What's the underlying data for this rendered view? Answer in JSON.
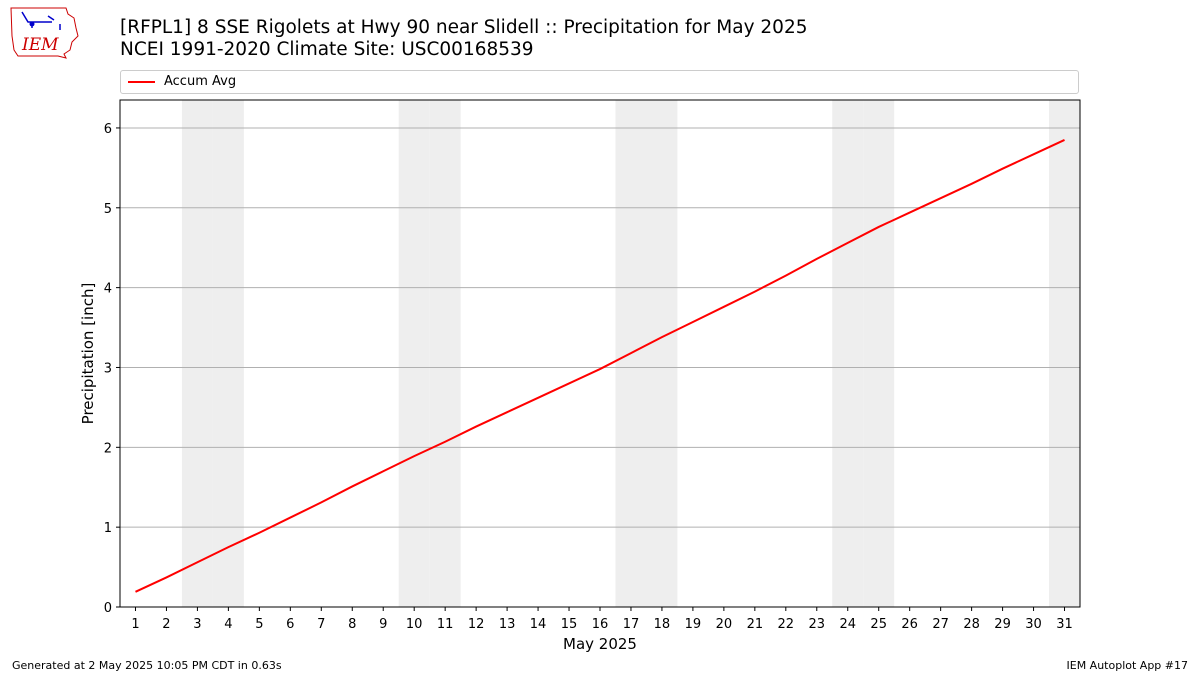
{
  "header": {
    "logo_text": "IEM",
    "title_line1": "[RFPL1] 8 SSE Rigolets at Hwy 90 near Slidell :: Precipitation for May 2025",
    "title_line2": "NCEI 1991-2020 Climate Site: USC00168539"
  },
  "colors": {
    "line": "#ff0000",
    "weekend_band": "#eeeeee",
    "grid": "#b0b0b0",
    "logo": "#cc0000",
    "logo_accent": "#0000cc"
  },
  "chart_data": {
    "type": "line",
    "xlabel": "May 2025",
    "ylabel": "Precipitation [inch]",
    "x": [
      1,
      2,
      3,
      4,
      5,
      6,
      7,
      8,
      9,
      10,
      11,
      12,
      13,
      14,
      15,
      16,
      17,
      18,
      19,
      20,
      21,
      22,
      23,
      24,
      25,
      26,
      27,
      28,
      29,
      30,
      31
    ],
    "xlim": [
      0.5,
      31.5
    ],
    "ylim": [
      0,
      6.35
    ],
    "yticks": [
      0,
      1,
      2,
      3,
      4,
      5,
      6
    ],
    "xtick_labels": [
      "1",
      "2",
      "3",
      "4",
      "5",
      "6",
      "7",
      "8",
      "9",
      "10",
      "11",
      "12",
      "13",
      "14",
      "15",
      "16",
      "17",
      "18",
      "19",
      "20",
      "21",
      "22",
      "23",
      "24",
      "25",
      "26",
      "27",
      "28",
      "29",
      "30",
      "31"
    ],
    "grid": "horizontal",
    "legend_position": "top",
    "weekend_days": [
      3,
      4,
      10,
      11,
      17,
      18,
      24,
      25,
      31
    ],
    "series": [
      {
        "name": "Accum Avg",
        "values": [
          0.19,
          0.37,
          0.56,
          0.75,
          0.93,
          1.12,
          1.31,
          1.51,
          1.7,
          1.89,
          2.07,
          2.26,
          2.44,
          2.62,
          2.8,
          2.98,
          3.18,
          3.38,
          3.57,
          3.76,
          3.95,
          4.15,
          4.36,
          4.56,
          4.76,
          4.94,
          5.12,
          5.3,
          5.49,
          5.67,
          5.85
        ]
      }
    ]
  },
  "footer": {
    "generated": "Generated at 2 May 2025 10:05 PM CDT in 0.63s",
    "app": "IEM Autoplot App #17"
  }
}
